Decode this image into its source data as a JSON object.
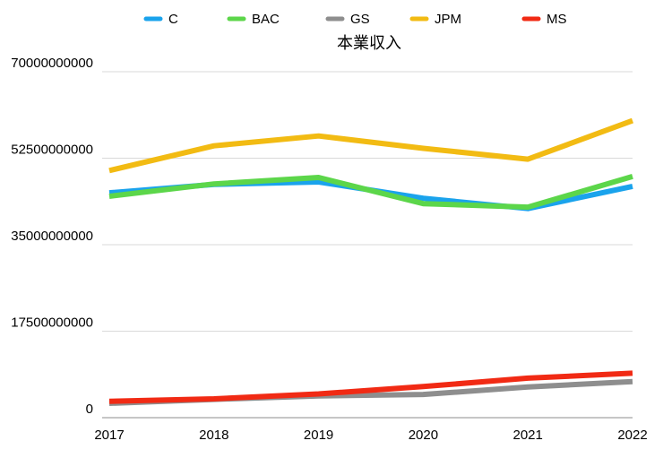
{
  "chart_data": {
    "type": "line",
    "title": "本業収入",
    "xlabel": "",
    "ylabel": "",
    "categories": [
      "2017",
      "2018",
      "2019",
      "2020",
      "2021",
      "2022"
    ],
    "ylim": [
      0,
      70000000000
    ],
    "yticks": [
      0,
      17500000000,
      35000000000,
      52500000000,
      70000000000
    ],
    "ytick_labels": [
      "0",
      "17500000000",
      "35000000000",
      "52500000000",
      "70000000000"
    ],
    "grid": true,
    "legend_position": "top",
    "series": [
      {
        "name": "C",
        "color": "#1aa3ec",
        "values": [
          45500000000,
          47200000000,
          47700000000,
          44400000000,
          42300000000,
          46800000000
        ]
      },
      {
        "name": "BAC",
        "color": "#5cd64a",
        "values": [
          44800000000,
          47300000000,
          48600000000,
          43300000000,
          42600000000,
          48800000000
        ]
      },
      {
        "name": "GS",
        "color": "#8e8e8e",
        "values": [
          2900000000,
          3700000000,
          4400000000,
          4700000000,
          6200000000,
          7300000000
        ]
      },
      {
        "name": "JPM",
        "color": "#f2bb13",
        "values": [
          50000000000,
          55000000000,
          57000000000,
          54500000000,
          52300000000,
          60100000000
        ]
      },
      {
        "name": "MS",
        "color": "#f12a14",
        "values": [
          3300000000,
          3800000000,
          4800000000,
          6300000000,
          8000000000,
          9000000000
        ]
      }
    ]
  }
}
